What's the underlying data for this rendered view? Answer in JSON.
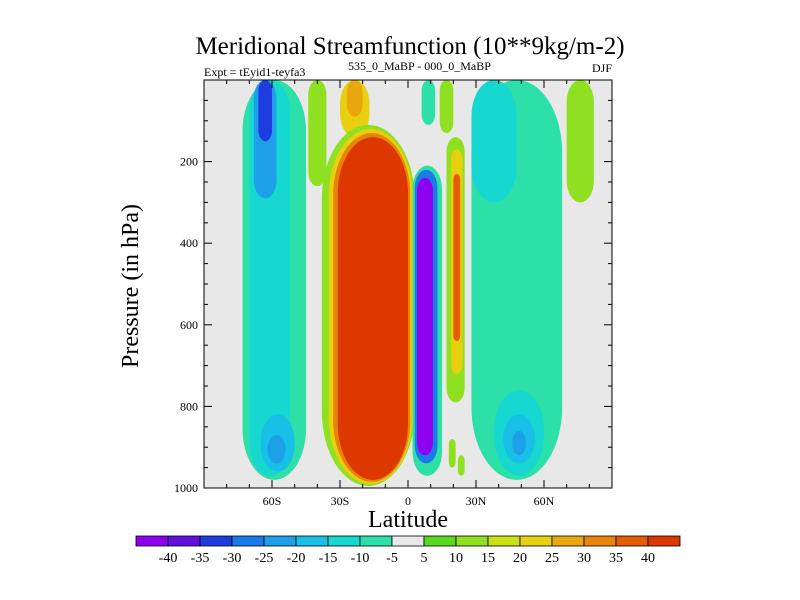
{
  "chart_data": {
    "type": "heatmap",
    "title": "Meridional Streamfunction (10**9kg/m-2)",
    "left_string_a": "Expt = tEyid1-teyfa3",
    "left_string_b": "535_0_MaBP - 000_0_MaBP",
    "right_string": "DJF",
    "xlabel": "Latitude",
    "ylabel": "Pressure (in hPa)",
    "xlim": [
      -90,
      90
    ],
    "ylim": [
      0,
      1000
    ],
    "y_inverted": true,
    "xticks": [
      {
        "value": -60,
        "label": "60S"
      },
      {
        "value": -30,
        "label": "30S"
      },
      {
        "value": 0,
        "label": "0"
      },
      {
        "value": 30,
        "label": "30N"
      },
      {
        "value": 60,
        "label": "60N"
      }
    ],
    "yticks": [
      {
        "value": 200,
        "label": "200"
      },
      {
        "value": 400,
        "label": "400"
      },
      {
        "value": 600,
        "label": "600"
      },
      {
        "value": 800,
        "label": "800"
      },
      {
        "value": 1000,
        "label": "1000"
      }
    ],
    "colorbar": {
      "levels": [
        -40,
        -35,
        -30,
        -25,
        -20,
        -15,
        -10,
        -5,
        5,
        10,
        15,
        20,
        25,
        30,
        35,
        40
      ],
      "labels": [
        "-40",
        "-35",
        "-30",
        "-25",
        "-20",
        "-15",
        "-10",
        "-5",
        "5",
        "10",
        "15",
        "20",
        "25",
        "30",
        "35",
        "40"
      ],
      "colors": [
        "#8e00f0",
        "#6010e0",
        "#1e3ce0",
        "#1a7ae8",
        "#1ea0e8",
        "#18c0e8",
        "#16d8d0",
        "#2ce0a8",
        "#e8e8e8",
        "#5ad820",
        "#8ee020",
        "#c8e014",
        "#e8d010",
        "#e8a80c",
        "#e88408",
        "#e45c04",
        "#dc3800"
      ]
    },
    "background_color": "#e8e8e8",
    "features": [
      {
        "name": "sh-midlat-teal-outer",
        "lat": [
          -73,
          -45
        ],
        "p": [
          0,
          980
        ],
        "value": -7
      },
      {
        "name": "sh-midlat-cyan",
        "lat": [
          -70,
          -52
        ],
        "p": [
          0,
          970
        ],
        "value": -13
      },
      {
        "name": "sh-upper-blue-strip",
        "lat": [
          -68,
          -58
        ],
        "p": [
          0,
          290
        ],
        "value": -25
      },
      {
        "name": "sh-upper-darkblue",
        "lat": [
          -66,
          -60
        ],
        "p": [
          0,
          150
        ],
        "value": -32
      },
      {
        "name": "sh-lower-lightblue",
        "lat": [
          -65,
          -50
        ],
        "p": [
          820,
          960
        ],
        "value": -20
      },
      {
        "name": "sh-lower-blue-spot",
        "lat": [
          -62,
          -54
        ],
        "p": [
          870,
          940
        ],
        "value": -25
      },
      {
        "name": "upper-green-tower",
        "lat": [
          -44,
          -36
        ],
        "p": [
          0,
          260
        ],
        "value": 10
      },
      {
        "name": "upper-yellow-tower",
        "lat": [
          -30,
          -17
        ],
        "p": [
          0,
          140
        ],
        "value": 20
      },
      {
        "name": "upper-orange-core",
        "lat": [
          -27,
          -20
        ],
        "p": [
          0,
          90
        ],
        "value": 27
      },
      {
        "name": "hadley-cell-outer-green",
        "lat": [
          -38,
          3
        ],
        "p": [
          110,
          995
        ],
        "value": 10
      },
      {
        "name": "hadley-cell-yellow",
        "lat": [
          -35,
          2
        ],
        "p": [
          120,
          990
        ],
        "value": 20
      },
      {
        "name": "hadley-cell-orange",
        "lat": [
          -33,
          1
        ],
        "p": [
          130,
          985
        ],
        "value": 33
      },
      {
        "name": "hadley-cell-core",
        "lat": [
          -31,
          0
        ],
        "p": [
          140,
          980
        ],
        "value": 45
      },
      {
        "name": "nh-hadley-outer-teal",
        "lat": [
          2,
          15
        ],
        "p": [
          210,
          970
        ],
        "value": -8
      },
      {
        "name": "nh-hadley-blue",
        "lat": [
          3,
          13
        ],
        "p": [
          220,
          940
        ],
        "value": -27
      },
      {
        "name": "nh-hadley-core",
        "lat": [
          4,
          11
        ],
        "p": [
          240,
          920
        ],
        "value": -45
      },
      {
        "name": "nh-upper-teal-strip",
        "lat": [
          6,
          12
        ],
        "p": [
          0,
          110
        ],
        "value": -8
      },
      {
        "name": "nh-upper-green-strip",
        "lat": [
          14,
          20
        ],
        "p": [
          0,
          130
        ],
        "value": 10
      },
      {
        "name": "nh-ferrel-green",
        "lat": [
          17,
          25
        ],
        "p": [
          140,
          790
        ],
        "value": 10
      },
      {
        "name": "nh-ferrel-yellow",
        "lat": [
          19,
          24
        ],
        "p": [
          170,
          720
        ],
        "value": 20
      },
      {
        "name": "nh-ferrel-core",
        "lat": [
          20,
          23
        ],
        "p": [
          230,
          640
        ],
        "value": 35
      },
      {
        "name": "nh-midlat-teal",
        "lat": [
          28,
          68
        ],
        "p": [
          0,
          980
        ],
        "value": -7
      },
      {
        "name": "nh-midlat-cyan-upper",
        "lat": [
          28,
          48
        ],
        "p": [
          0,
          300
        ],
        "value": -13
      },
      {
        "name": "nh-midlat-cyan-lower",
        "lat": [
          38,
          60
        ],
        "p": [
          760,
          970
        ],
        "value": -13
      },
      {
        "name": "nh-midlat-lightblue",
        "lat": [
          42,
          56
        ],
        "p": [
          820,
          940
        ],
        "value": -20
      },
      {
        "name": "nh-midlat-blue-spot",
        "lat": [
          46,
          52
        ],
        "p": [
          860,
          920
        ],
        "value": -25
      },
      {
        "name": "nh-polar-green",
        "lat": [
          70,
          82
        ],
        "p": [
          0,
          300
        ],
        "value": 10
      },
      {
        "name": "nh-lower-green-blob-a",
        "lat": [
          18,
          21
        ],
        "p": [
          880,
          950
        ],
        "value": 10
      },
      {
        "name": "nh-lower-green-blob-b",
        "lat": [
          22,
          25
        ],
        "p": [
          920,
          970
        ],
        "value": 10
      }
    ]
  }
}
